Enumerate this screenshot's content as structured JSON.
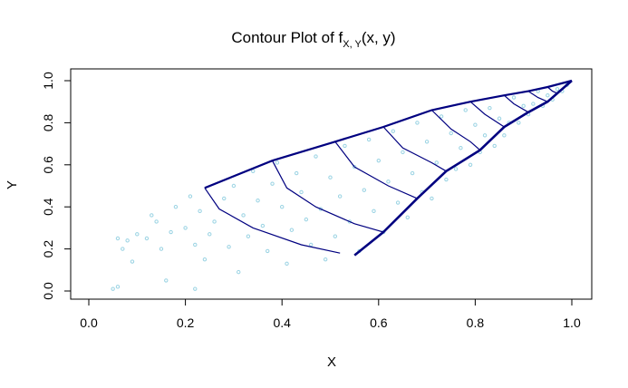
{
  "chart_data": {
    "type": "scatter",
    "title": "Contour Plot of f",
    "title_subscript": "X, Y",
    "title_suffix": "(x, y)",
    "xlabel": "X",
    "ylabel": "Y",
    "xlim": [
      0.0,
      1.0
    ],
    "ylim": [
      0.0,
      1.0
    ],
    "xticks": [
      "0.0",
      "0.2",
      "0.4",
      "0.6",
      "0.8",
      "1.0"
    ],
    "yticks": [
      "0.0",
      "0.2",
      "0.4",
      "0.6",
      "0.8",
      "1.0"
    ],
    "grid": false,
    "legend": "none",
    "colors": {
      "points": "#9ad3e3",
      "contours": "#000080"
    },
    "points": [
      [
        0.05,
        0.01
      ],
      [
        0.06,
        0.02
      ],
      [
        0.06,
        0.25
      ],
      [
        0.08,
        0.24
      ],
      [
        0.07,
        0.2
      ],
      [
        0.09,
        0.14
      ],
      [
        0.1,
        0.27
      ],
      [
        0.12,
        0.25
      ],
      [
        0.13,
        0.36
      ],
      [
        0.14,
        0.33
      ],
      [
        0.15,
        0.2
      ],
      [
        0.16,
        0.05
      ],
      [
        0.17,
        0.28
      ],
      [
        0.18,
        0.4
      ],
      [
        0.2,
        0.3
      ],
      [
        0.21,
        0.45
      ],
      [
        0.22,
        0.01
      ],
      [
        0.22,
        0.22
      ],
      [
        0.23,
        0.38
      ],
      [
        0.24,
        0.15
      ],
      [
        0.25,
        0.27
      ],
      [
        0.26,
        0.33
      ],
      [
        0.28,
        0.44
      ],
      [
        0.29,
        0.21
      ],
      [
        0.3,
        0.5
      ],
      [
        0.31,
        0.09
      ],
      [
        0.32,
        0.36
      ],
      [
        0.33,
        0.26
      ],
      [
        0.34,
        0.57
      ],
      [
        0.35,
        0.43
      ],
      [
        0.36,
        0.31
      ],
      [
        0.37,
        0.19
      ],
      [
        0.38,
        0.51
      ],
      [
        0.39,
        0.61
      ],
      [
        0.4,
        0.4
      ],
      [
        0.41,
        0.13
      ],
      [
        0.42,
        0.29
      ],
      [
        0.43,
        0.56
      ],
      [
        0.44,
        0.47
      ],
      [
        0.45,
        0.34
      ],
      [
        0.46,
        0.22
      ],
      [
        0.47,
        0.64
      ],
      [
        0.48,
        0.39
      ],
      [
        0.49,
        0.15
      ],
      [
        0.5,
        0.54
      ],
      [
        0.51,
        0.26
      ],
      [
        0.52,
        0.45
      ],
      [
        0.53,
        0.69
      ],
      [
        0.54,
        0.33
      ],
      [
        0.55,
        0.59
      ],
      [
        0.56,
        0.19
      ],
      [
        0.57,
        0.48
      ],
      [
        0.58,
        0.72
      ],
      [
        0.59,
        0.38
      ],
      [
        0.6,
        0.62
      ],
      [
        0.61,
        0.28
      ],
      [
        0.62,
        0.52
      ],
      [
        0.63,
        0.76
      ],
      [
        0.64,
        0.42
      ],
      [
        0.65,
        0.66
      ],
      [
        0.66,
        0.35
      ],
      [
        0.67,
        0.56
      ],
      [
        0.68,
        0.8
      ],
      [
        0.69,
        0.47
      ],
      [
        0.7,
        0.71
      ],
      [
        0.71,
        0.44
      ],
      [
        0.72,
        0.61
      ],
      [
        0.73,
        0.83
      ],
      [
        0.74,
        0.53
      ],
      [
        0.75,
        0.75
      ],
      [
        0.76,
        0.58
      ],
      [
        0.77,
        0.68
      ],
      [
        0.78,
        0.86
      ],
      [
        0.79,
        0.6
      ],
      [
        0.8,
        0.79
      ],
      [
        0.81,
        0.66
      ],
      [
        0.82,
        0.74
      ],
      [
        0.83,
        0.87
      ],
      [
        0.84,
        0.69
      ],
      [
        0.85,
        0.82
      ],
      [
        0.86,
        0.74
      ],
      [
        0.87,
        0.8
      ],
      [
        0.88,
        0.92
      ],
      [
        0.89,
        0.8
      ],
      [
        0.9,
        0.88
      ],
      [
        0.91,
        0.84
      ],
      [
        0.92,
        0.89
      ],
      [
        0.93,
        0.95
      ],
      [
        0.94,
        0.88
      ],
      [
        0.95,
        0.93
      ],
      [
        0.96,
        0.91
      ],
      [
        0.97,
        0.96
      ],
      [
        0.98,
        0.95
      ],
      [
        0.99,
        0.98
      ]
    ],
    "contours": [
      [
        [
          0.24,
          0.49
        ],
        [
          0.27,
          0.39
        ],
        [
          0.34,
          0.3
        ],
        [
          0.44,
          0.22
        ],
        [
          0.52,
          0.18
        ]
      ],
      [
        [
          0.38,
          0.62
        ],
        [
          0.41,
          0.49
        ],
        [
          0.47,
          0.4
        ],
        [
          0.55,
          0.32
        ],
        [
          0.61,
          0.28
        ]
      ],
      [
        [
          0.51,
          0.71
        ],
        [
          0.55,
          0.59
        ],
        [
          0.62,
          0.5
        ],
        [
          0.68,
          0.44
        ]
      ],
      [
        [
          0.61,
          0.78
        ],
        [
          0.65,
          0.68
        ],
        [
          0.71,
          0.61
        ],
        [
          0.74,
          0.57
        ]
      ],
      [
        [
          0.71,
          0.86
        ],
        [
          0.75,
          0.77
        ],
        [
          0.79,
          0.71
        ],
        [
          0.81,
          0.67
        ]
      ],
      [
        [
          0.79,
          0.9
        ],
        [
          0.82,
          0.84
        ],
        [
          0.86,
          0.78
        ]
      ],
      [
        [
          0.86,
          0.93
        ],
        [
          0.88,
          0.89
        ],
        [
          0.91,
          0.85
        ]
      ],
      [
        [
          0.91,
          0.95
        ],
        [
          0.93,
          0.92
        ],
        [
          0.95,
          0.9
        ]
      ],
      [
        [
          0.95,
          0.97
        ],
        [
          0.96,
          0.95
        ],
        [
          0.97,
          0.94
        ]
      ]
    ],
    "boundary_upper": [
      [
        0.24,
        0.49
      ],
      [
        0.38,
        0.62
      ],
      [
        0.51,
        0.71
      ],
      [
        0.61,
        0.78
      ],
      [
        0.71,
        0.86
      ],
      [
        0.79,
        0.9
      ],
      [
        0.86,
        0.93
      ],
      [
        0.91,
        0.95
      ],
      [
        0.95,
        0.97
      ],
      [
        1.0,
        1.0
      ]
    ],
    "boundary_lower": [
      [
        0.55,
        0.17
      ],
      [
        0.61,
        0.28
      ],
      [
        0.68,
        0.44
      ],
      [
        0.74,
        0.57
      ],
      [
        0.81,
        0.67
      ],
      [
        0.86,
        0.78
      ],
      [
        0.91,
        0.85
      ],
      [
        0.95,
        0.9
      ],
      [
        0.97,
        0.94
      ],
      [
        1.0,
        1.0
      ]
    ]
  }
}
